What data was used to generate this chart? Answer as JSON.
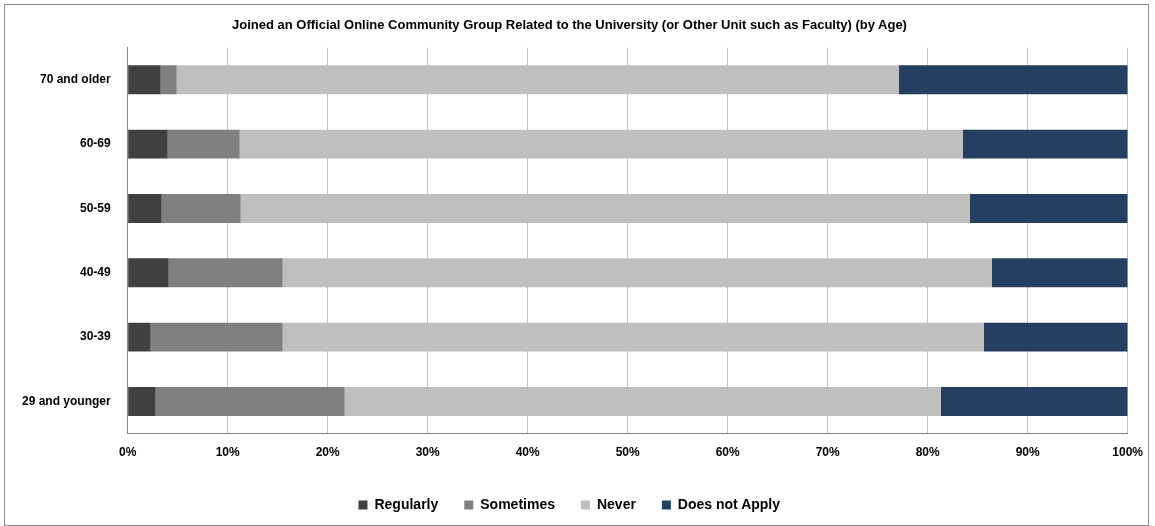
{
  "chart_data": {
    "type": "bar",
    "orientation": "horizontal",
    "stacked": true,
    "title": "Joined an Official Online Community Group Related to the University (or Other Unit such as Faculty) (by Age)",
    "categories": [
      "70 and older",
      "60-69",
      "50-59",
      "40-49",
      "30-39",
      "29 and younger"
    ],
    "series": [
      {
        "name": "Regularly",
        "color": "#404040",
        "values": [
          3.3,
          4.0,
          3.4,
          4.1,
          2.3,
          2.8
        ]
      },
      {
        "name": "Sometimes",
        "color": "#808080",
        "values": [
          1.6,
          7.2,
          7.9,
          11.4,
          13.2,
          18.9
        ]
      },
      {
        "name": "Never",
        "color": "#bfbfbf",
        "values": [
          72.2,
          72.3,
          72.9,
          70.9,
          70.1,
          59.6
        ]
      },
      {
        "name": "Does not Apply",
        "color": "#243f60",
        "values": [
          22.9,
          16.5,
          15.8,
          13.6,
          14.4,
          18.7
        ]
      }
    ],
    "xlim": [
      0,
      100
    ],
    "xticks": [
      {
        "value": 0,
        "label": "0%"
      },
      {
        "value": 10,
        "label": "10%"
      },
      {
        "value": 20,
        "label": "20%"
      },
      {
        "value": 30,
        "label": "30%"
      },
      {
        "value": 40,
        "label": "40%"
      },
      {
        "value": 50,
        "label": "50%"
      },
      {
        "value": 60,
        "label": "60%"
      },
      {
        "value": 70,
        "label": "70%"
      },
      {
        "value": 80,
        "label": "80%"
      },
      {
        "value": 90,
        "label": "90%"
      },
      {
        "value": 100,
        "label": "100%"
      }
    ],
    "grid": "x",
    "legend": "bottom"
  }
}
